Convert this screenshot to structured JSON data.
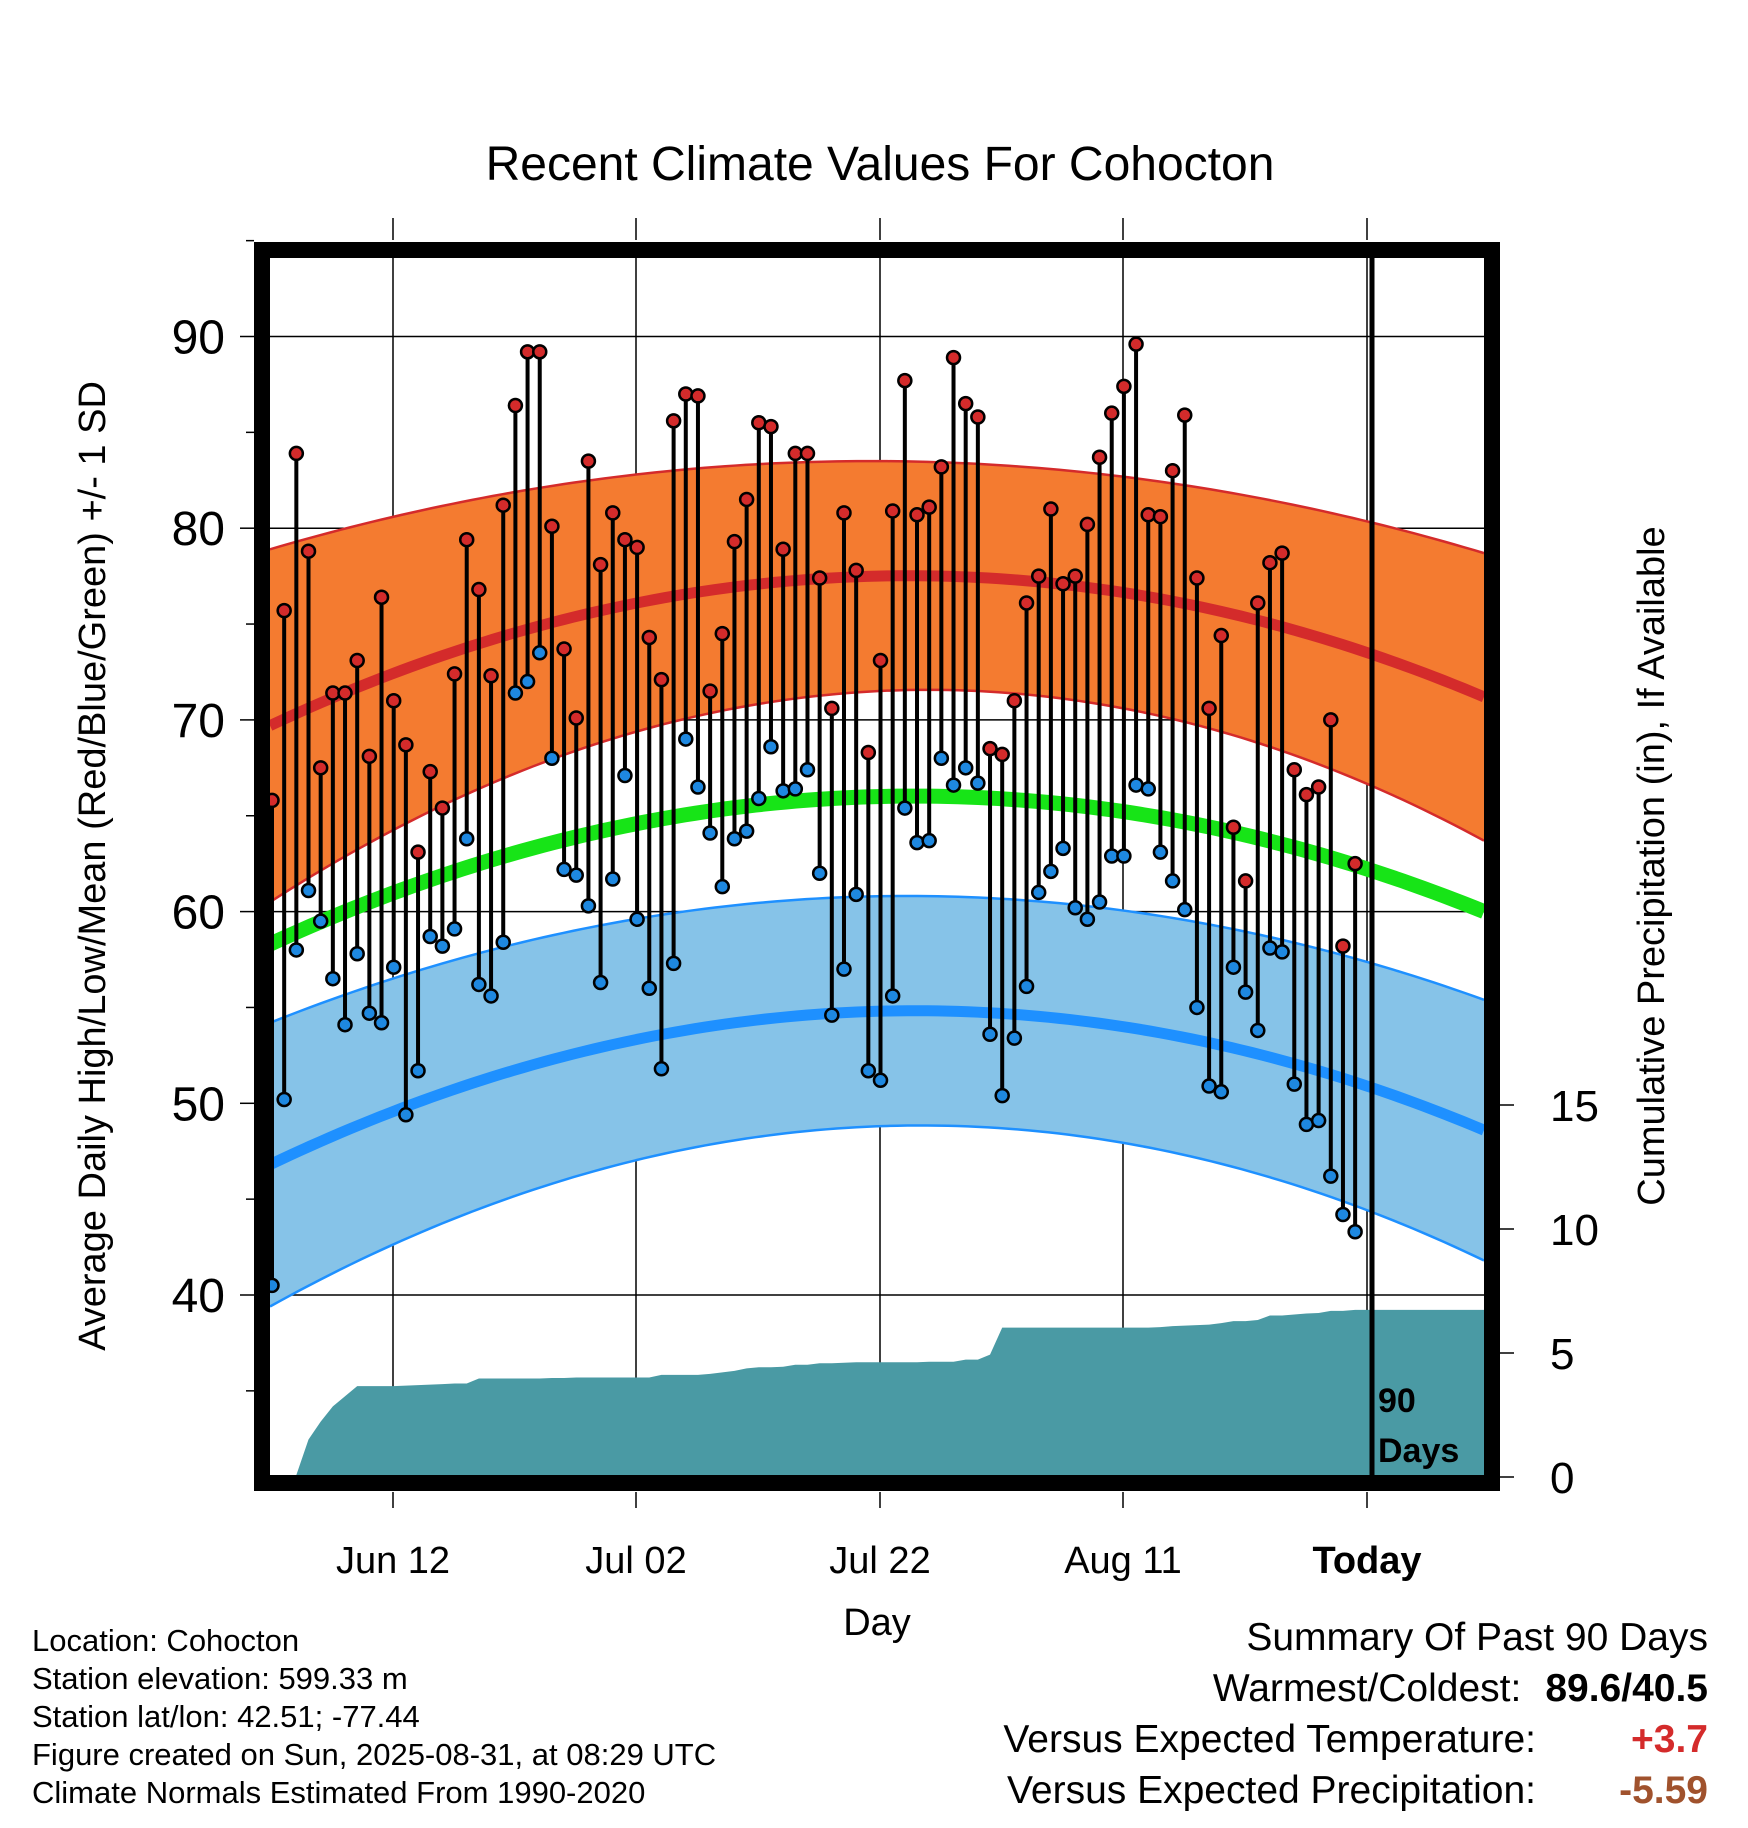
{
  "chart_data": {
    "type": "line",
    "title": "Recent Climate Values For Cohocton",
    "xlabel": "Day",
    "ylabel": "Average Daily High/Low/Mean (Red/Blue/Green) +/- 1 SD",
    "y2label": "Cumulative Precipitation (in), If Available",
    "x_tick_labels": [
      "Jun 12",
      "Jul 02",
      "Jul 22",
      "Aug 11",
      "Today"
    ],
    "y_ticks": [
      40,
      50,
      60,
      70,
      80,
      90
    ],
    "y2_ticks": [
      0,
      5,
      10,
      15
    ],
    "today_label": "90 Days",
    "ylim": [
      30,
      95
    ],
    "grid": true,
    "colors": {
      "high_mean": "#d42b2b",
      "high_band": "#f47b30",
      "low_mean": "#1e90ff",
      "low_band": "#86c3e8",
      "mean": "#17e417",
      "precip": "#4a9aa4",
      "high_marker": "#d42b2b",
      "low_marker": "#1e88e0"
    },
    "normals": {
      "high_mean": [
        69.7,
        77.5,
        71.2
      ],
      "high_sd": [
        9.2,
        6.0,
        7.5
      ],
      "low_mean": [
        46.8,
        54.8,
        48.6
      ],
      "low_sd": [
        7.4,
        6.0,
        6.8
      ],
      "mean": [
        58.3,
        66.0,
        60.0
      ]
    },
    "daily_high": [
      65.8,
      75.7,
      83.9,
      78.8,
      67.5,
      71.4,
      71.4,
      73.1,
      68.1,
      76.4,
      71.0,
      68.7,
      63.1,
      67.3,
      65.4,
      72.4,
      79.4,
      76.8,
      72.3,
      81.2,
      86.4,
      89.2,
      89.2,
      80.1,
      73.7,
      70.1,
      83.5,
      78.1,
      80.8,
      79.4,
      79.0,
      74.3,
      72.1,
      85.6,
      87.0,
      86.9,
      71.5,
      74.5,
      79.3,
      81.5,
      85.5,
      85.3,
      78.9,
      83.9,
      83.9,
      77.4,
      70.6,
      80.8,
      77.8,
      68.3,
      73.1,
      80.9,
      87.7,
      80.7,
      81.1,
      83.2,
      88.9,
      86.5,
      85.8,
      68.5,
      68.2,
      71.0,
      76.1,
      77.5,
      81.0,
      77.1,
      77.5,
      80.2,
      83.7,
      86.0,
      87.4,
      89.6,
      80.7,
      80.6,
      83.0,
      85.9,
      77.4,
      70.6,
      74.4,
      64.4,
      61.6,
      76.1,
      78.2,
      78.7,
      67.4,
      66.1,
      66.5,
      70.0,
      58.2,
      62.5
    ],
    "daily_low": [
      40.5,
      50.2,
      58.0,
      61.1,
      59.5,
      56.5,
      54.1,
      57.8,
      54.7,
      54.2,
      57.1,
      49.4,
      51.7,
      58.7,
      58.2,
      59.1,
      63.8,
      56.2,
      55.6,
      58.4,
      71.4,
      72.0,
      73.5,
      68.0,
      62.2,
      61.9,
      60.3,
      56.3,
      61.7,
      67.1,
      59.6,
      56.0,
      51.8,
      57.3,
      69.0,
      66.5,
      64.1,
      61.3,
      63.8,
      64.2,
      65.9,
      68.6,
      66.3,
      66.4,
      67.4,
      62.0,
      54.6,
      57.0,
      60.9,
      51.7,
      51.2,
      55.6,
      65.4,
      63.6,
      63.7,
      68.0,
      66.6,
      67.5,
      66.7,
      53.6,
      50.4,
      53.4,
      56.1,
      61.0,
      62.1,
      63.3,
      60.2,
      59.6,
      60.5,
      62.9,
      62.9,
      66.6,
      66.4,
      63.1,
      61.6,
      60.1,
      55.0,
      50.9,
      50.6,
      57.1,
      55.8,
      53.8,
      58.1,
      57.9,
      51.0,
      48.9,
      49.1,
      46.2,
      44.2,
      43.3
    ],
    "precip_cumulative": [
      0.0,
      0.0,
      0.0,
      1.4,
      2.1,
      2.7,
      3.1,
      3.5,
      3.5,
      3.5,
      3.5,
      3.52,
      3.54,
      3.56,
      3.58,
      3.6,
      3.6,
      3.8,
      3.8,
      3.8,
      3.8,
      3.8,
      3.8,
      3.82,
      3.82,
      3.84,
      3.84,
      3.84,
      3.84,
      3.84,
      3.84,
      3.84,
      3.94,
      3.94,
      3.94,
      3.94,
      3.98,
      4.04,
      4.1,
      4.2,
      4.24,
      4.24,
      4.26,
      4.34,
      4.34,
      4.4,
      4.4,
      4.42,
      4.44,
      4.44,
      4.44,
      4.44,
      4.44,
      4.44,
      4.46,
      4.46,
      4.46,
      4.54,
      4.54,
      4.74,
      5.8,
      5.8,
      5.8,
      5.8,
      5.8,
      5.8,
      5.8,
      5.8,
      5.8,
      5.8,
      5.8,
      5.8,
      5.8,
      5.82,
      5.86,
      5.88,
      5.9,
      5.92,
      5.98,
      6.06,
      6.06,
      6.1,
      6.28,
      6.28,
      6.32,
      6.36,
      6.38,
      6.46,
      6.46,
      6.5
    ]
  },
  "footer": {
    "location": "Location: Cohocton",
    "elevation": "Station elevation: 599.33 m",
    "latlon": "Station lat/lon: 42.51; -77.44",
    "created": "Figure created on Sun, 2025-08-31, at 08:29 UTC",
    "normals": "Climate Normals Estimated From 1990-2020"
  },
  "summary": {
    "title": "Summary Of Past 90 Days",
    "warmest_coldest_label": "Warmest/Coldest:",
    "warmest": "89.6",
    "coldest": "40.5",
    "vs_temp_label": "Versus Expected Temperature:",
    "vs_temp_value": "+3.7",
    "vs_temp_color": "#d42b2b",
    "vs_precip_label": "Versus Expected Precipitation:",
    "vs_precip_value": "-5.59",
    "vs_precip_color": "#a0522d"
  }
}
